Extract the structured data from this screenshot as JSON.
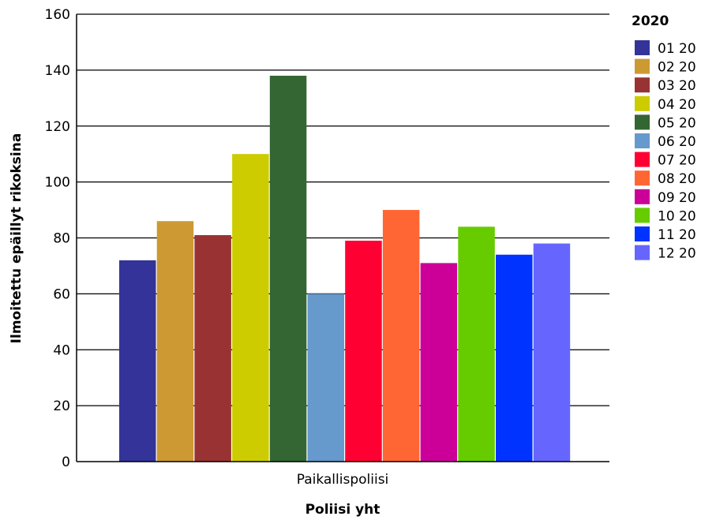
{
  "chart_data": {
    "type": "bar",
    "categories": [
      "Paikallispoliisi"
    ],
    "xlabel": "Poliisi yht",
    "ylabel": "Ilmoitettu epäillyt rikoksina",
    "ylim": [
      0,
      160
    ],
    "yticks": [
      0,
      20,
      40,
      60,
      80,
      100,
      120,
      140,
      160
    ],
    "grid": true,
    "legend_title": "2020",
    "legend_position": "right",
    "series": [
      {
        "name": "01 20",
        "color": "#333399",
        "values": [
          72
        ]
      },
      {
        "name": "02 20",
        "color": "#cc9933",
        "values": [
          86
        ]
      },
      {
        "name": "03 20",
        "color": "#993333",
        "values": [
          81
        ]
      },
      {
        "name": "04 20",
        "color": "#cccc00",
        "values": [
          110
        ]
      },
      {
        "name": "05 20",
        "color": "#336633",
        "values": [
          138
        ]
      },
      {
        "name": "06 20",
        "color": "#6699cc",
        "values": [
          60
        ]
      },
      {
        "name": "07 20",
        "color": "#ff0033",
        "values": [
          79
        ]
      },
      {
        "name": "08 20",
        "color": "#ff6633",
        "values": [
          90
        ]
      },
      {
        "name": "09 20",
        "color": "#cc0099",
        "values": [
          71
        ]
      },
      {
        "name": "10 20",
        "color": "#66cc00",
        "values": [
          84
        ]
      },
      {
        "name": "11 20",
        "color": "#0033ff",
        "values": [
          74
        ]
      },
      {
        "name": "12 20",
        "color": "#6666ff",
        "values": [
          78
        ]
      }
    ]
  }
}
